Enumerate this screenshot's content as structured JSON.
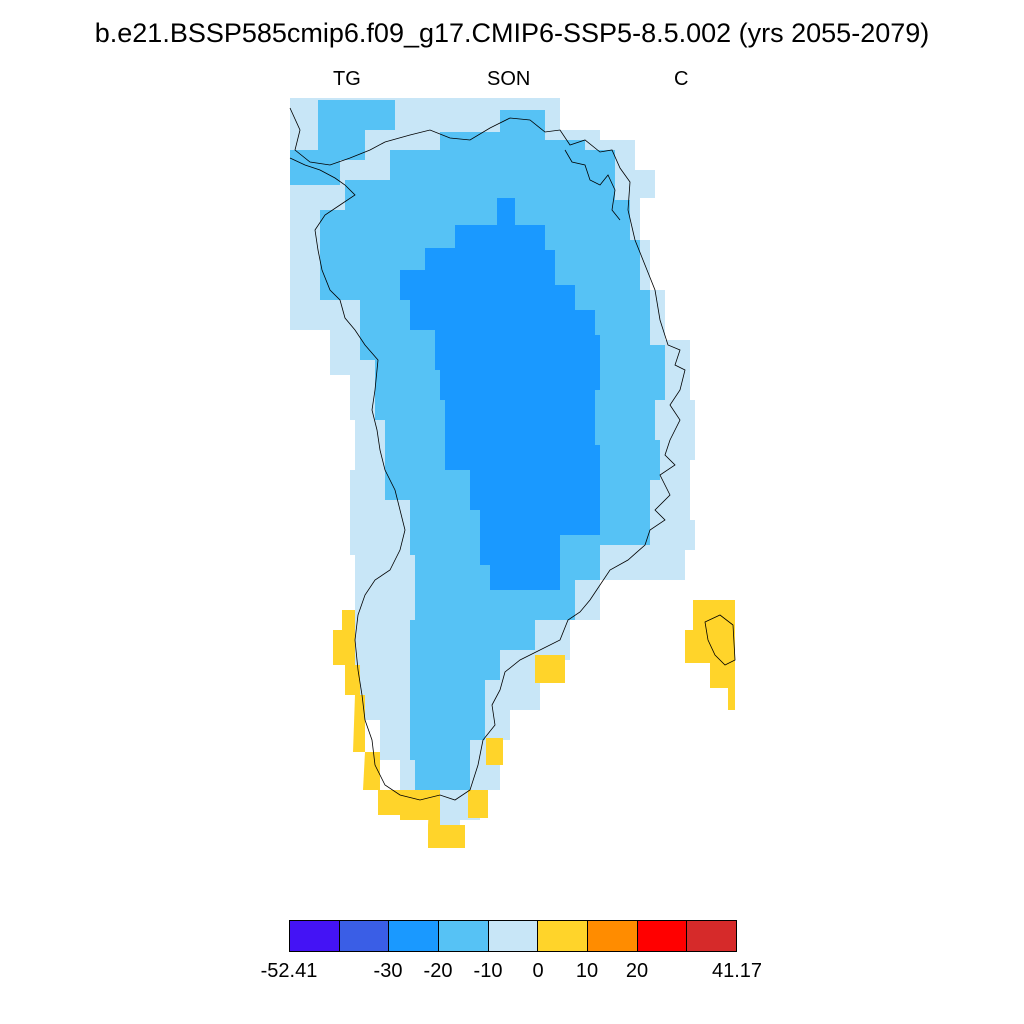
{
  "title": "b.e21.BSSP585cmip6.f09_g17.CMIP6-SSP5-8.5.002 (yrs 2055-2079)",
  "subtitle_left": "TG",
  "subtitle_center": "SON",
  "subtitle_right": "C",
  "colorbar": {
    "colors": [
      "#4413f5",
      "#3a5ee6",
      "#1a99ff",
      "#56c2f5",
      "#c8e6f7",
      "#ffd42a",
      "#ff8c00",
      "#ff0000",
      "#d62a2a"
    ],
    "labels": [
      "-52.41",
      "-30",
      "-20",
      "-10",
      "0",
      "10",
      "20",
      "41.17"
    ]
  },
  "fill_colors": {
    "very_light_blue": "#c8e6f7",
    "light_blue": "#56c2f5",
    "medium_blue": "#1a99ff",
    "yellow": "#ffd42a"
  }
}
